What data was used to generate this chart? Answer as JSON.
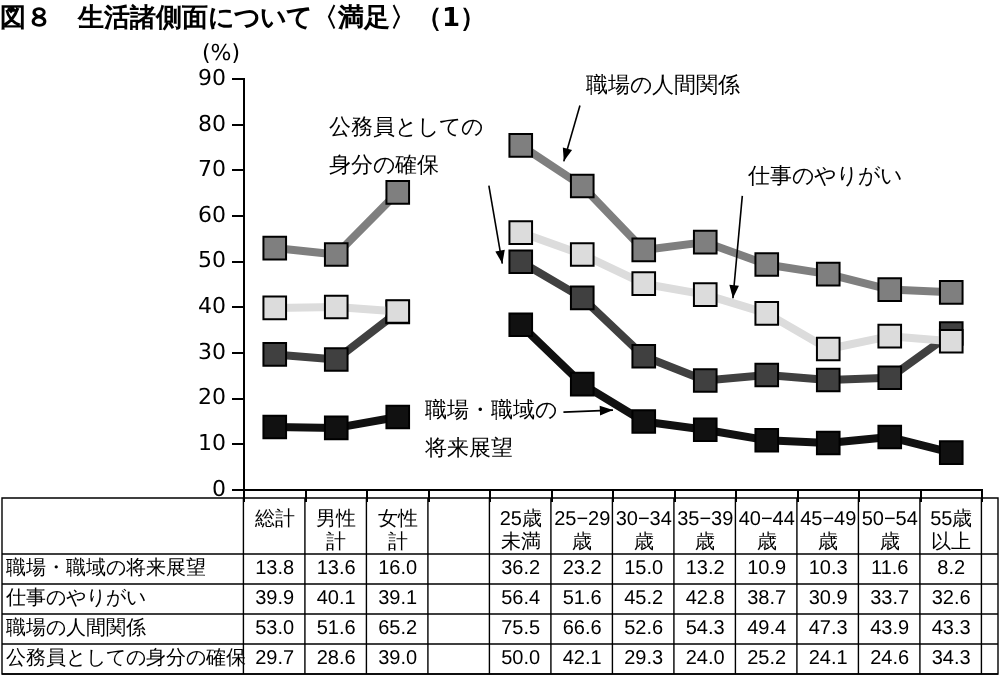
{
  "chart_data": {
    "type": "line",
    "title": "図８　生活諸側面について〈満足〉（1）",
    "ylabel": "(%)",
    "categories": [
      "総計",
      "男性計",
      "女性計",
      null,
      "25歳未満",
      "25−29歳",
      "30−34歳",
      "35−39歳",
      "40−44歳",
      "45−49歳",
      "50−54歳",
      "55歳以上"
    ],
    "series": [
      {
        "name": "職場・職域の将来展望",
        "color": "#111111",
        "values": [
          13.8,
          13.6,
          16.0,
          null,
          36.2,
          23.2,
          15.0,
          13.2,
          10.9,
          10.3,
          11.6,
          8.2
        ],
        "value_labels": [
          "13.8",
          "13.6",
          "16.0",
          null,
          "36.2",
          "23.2",
          "15.0",
          "13.2",
          "10.9",
          "10.3",
          "11.6",
          "8.2"
        ]
      },
      {
        "name": "仕事のやりがい",
        "color": "#dcdcdc",
        "values": [
          39.9,
          40.1,
          39.1,
          null,
          56.4,
          51.6,
          45.2,
          42.8,
          38.7,
          30.9,
          33.7,
          32.6
        ],
        "value_labels": [
          "39.9",
          "40.1",
          "39.1",
          null,
          "56.4",
          "51.6",
          "45.2",
          "42.8",
          "38.7",
          "30.9",
          "33.7",
          "32.6"
        ]
      },
      {
        "name": "職場の人間関係",
        "color": "#7f7f7f",
        "values": [
          53.0,
          51.6,
          65.2,
          null,
          75.5,
          66.6,
          52.6,
          54.3,
          49.4,
          47.3,
          43.9,
          43.3
        ],
        "value_labels": [
          "53.0",
          "51.6",
          "65.2",
          null,
          "75.5",
          "66.6",
          "52.6",
          "54.3",
          "49.4",
          "47.3",
          "43.9",
          "43.3"
        ]
      },
      {
        "name": "公務員としての身分の確保",
        "color": "#404040",
        "values": [
          29.7,
          28.6,
          39.0,
          null,
          50.0,
          42.1,
          29.3,
          24.0,
          25.2,
          24.1,
          24.6,
          34.3
        ],
        "value_labels": [
          "29.7",
          "28.6",
          "39.0",
          null,
          "50.0",
          "42.1",
          "29.3",
          "24.0",
          "25.2",
          "24.1",
          "24.6",
          "34.3"
        ]
      }
    ],
    "ylim": [
      0,
      90
    ],
    "yticks": [
      0,
      10,
      20,
      30,
      40,
      50,
      60,
      70,
      80,
      90
    ],
    "marker": "square",
    "grid": false
  }
}
